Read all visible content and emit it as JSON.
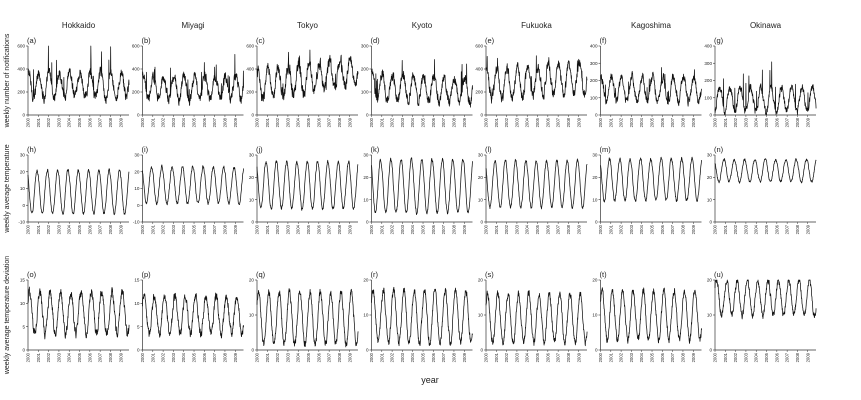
{
  "figure": {
    "xlabel": "year",
    "row_labels": [
      "weekly number of notifications",
      "weekly average temperature",
      "weekly average temperature deviation"
    ],
    "columns": [
      "Hokkaido",
      "Miyagi",
      "Tokyo",
      "Kyoto",
      "Fukuoka",
      "Kagoshima",
      "Okinawa"
    ],
    "year_ticks": [
      "2000",
      "2001",
      "2002",
      "2003",
      "2004",
      "2005",
      "2006",
      "2007",
      "2008",
      "2009"
    ],
    "colors": {
      "line": "#111111",
      "axis": "#333333",
      "text": "#222222"
    }
  },
  "chart_data": [
    {
      "type": "line",
      "panel": "(a)",
      "region": "Hokkaido",
      "measure": "notifications",
      "x_range": [
        2000,
        2009.8
      ],
      "ylim": [
        0,
        600
      ],
      "yticks": [
        0,
        200,
        400,
        600
      ],
      "ytick_labels": [
        "0",
        "200",
        "400",
        "600"
      ],
      "mean": 260,
      "amplitude": 110,
      "noise": 70,
      "phase": 0.05,
      "spike": 300,
      "trend": 0
    },
    {
      "type": "line",
      "panel": "(b)",
      "region": "Miyagi",
      "measure": "notifications",
      "x_range": [
        2000,
        2009.8
      ],
      "ylim": [
        0,
        600
      ],
      "yticks": [
        0,
        200,
        400,
        600
      ],
      "ytick_labels": [
        "0",
        "200",
        "400",
        "600"
      ],
      "mean": 240,
      "amplitude": 100,
      "noise": 65,
      "phase": 0.05,
      "spike": 220,
      "trend": 0
    },
    {
      "type": "line",
      "panel": "(c)",
      "region": "Tokyo",
      "measure": "notifications",
      "x_range": [
        2000,
        2009.8
      ],
      "ylim": [
        0,
        600
      ],
      "yticks": [
        0,
        200,
        400,
        600
      ],
      "ytick_labels": [
        "0",
        "200",
        "400",
        "600"
      ],
      "mean": 320,
      "amplitude": 130,
      "noise": 80,
      "phase": 0.05,
      "spike": 150,
      "trend": 120
    },
    {
      "type": "line",
      "panel": "(d)",
      "region": "Kyoto",
      "measure": "notifications",
      "x_range": [
        2000,
        2009.8
      ],
      "ylim": [
        0,
        300
      ],
      "yticks": [
        0,
        100,
        200,
        300
      ],
      "ytick_labels": [
        "0",
        "100",
        "200",
        "300"
      ],
      "mean": 115,
      "amplitude": 55,
      "noise": 35,
      "phase": 0.05,
      "spike": 110,
      "trend": -20
    },
    {
      "type": "line",
      "panel": "(e)",
      "region": "Fukuoka",
      "measure": "notifications",
      "x_range": [
        2000,
        2009.8
      ],
      "ylim": [
        0,
        600
      ],
      "yticks": [
        0,
        200,
        400,
        600
      ],
      "ytick_labels": [
        "0",
        "200",
        "400",
        "600"
      ],
      "mean": 300,
      "amplitude": 130,
      "noise": 70,
      "phase": 0.05,
      "spike": 120,
      "trend": 60
    },
    {
      "type": "line",
      "panel": "(f)",
      "region": "Kagoshima",
      "measure": "notifications",
      "x_range": [
        2000,
        2009.8
      ],
      "ylim": [
        0,
        400
      ],
      "yticks": [
        0,
        100,
        200,
        300,
        400
      ],
      "ytick_labels": [
        "0",
        "100",
        "200",
        "300",
        "400"
      ],
      "mean": 150,
      "amplitude": 70,
      "noise": 40,
      "phase": 0.05,
      "spike": 80,
      "trend": 0
    },
    {
      "type": "line",
      "panel": "(g)",
      "region": "Okinawa",
      "measure": "notifications",
      "x_range": [
        2000,
        2009.8
      ],
      "ylim": [
        0,
        400
      ],
      "yticks": [
        0,
        100,
        200,
        300,
        400
      ],
      "ytick_labels": [
        "0",
        "100",
        "200",
        "300",
        "400"
      ],
      "mean": 90,
      "amplitude": 70,
      "noise": 35,
      "phase": 0.45,
      "spike": 180,
      "trend": 0
    },
    {
      "type": "line",
      "panel": "(h)",
      "region": "Hokkaido",
      "measure": "temperature",
      "x_range": [
        2000,
        2009.8
      ],
      "ylim": [
        -10,
        30
      ],
      "yticks": [
        -10,
        0,
        10,
        20,
        30
      ],
      "ytick_labels": [
        "-10",
        "0",
        "10",
        "20",
        "30"
      ],
      "mean": 8,
      "amplitude": 13,
      "noise": 1.5,
      "phase": -0.12
    },
    {
      "type": "line",
      "panel": "(i)",
      "region": "Miyagi",
      "measure": "temperature",
      "x_range": [
        2000,
        2009.8
      ],
      "ylim": [
        -10,
        30
      ],
      "yticks": [
        -10,
        0,
        10,
        20,
        30
      ],
      "ytick_labels": [
        "-10",
        "0",
        "10",
        "20",
        "30"
      ],
      "mean": 12,
      "amplitude": 11,
      "noise": 1.5,
      "phase": -0.12
    },
    {
      "type": "line",
      "panel": "(j)",
      "region": "Tokyo",
      "measure": "temperature",
      "x_range": [
        2000,
        2009.8
      ],
      "ylim": [
        0,
        30
      ],
      "yticks": [
        0,
        10,
        20,
        30
      ],
      "ytick_labels": [
        "0",
        "10",
        "20",
        "30"
      ],
      "mean": 16.5,
      "amplitude": 10.5,
      "noise": 1.2,
      "phase": -0.12
    },
    {
      "type": "line",
      "panel": "(k)",
      "region": "Kyoto",
      "measure": "temperature",
      "x_range": [
        2000,
        2009.8
      ],
      "ylim": [
        0,
        30
      ],
      "yticks": [
        0,
        10,
        20,
        30
      ],
      "ytick_labels": [
        "0",
        "10",
        "20",
        "30"
      ],
      "mean": 16,
      "amplitude": 12,
      "noise": 1.2,
      "phase": -0.12
    },
    {
      "type": "line",
      "panel": "(l)",
      "region": "Fukuoka",
      "measure": "temperature",
      "x_range": [
        2000,
        2009.8
      ],
      "ylim": [
        0,
        30
      ],
      "yticks": [
        0,
        10,
        20,
        30
      ],
      "ytick_labels": [
        "0",
        "10",
        "20",
        "30"
      ],
      "mean": 17,
      "amplitude": 10.5,
      "noise": 1.2,
      "phase": -0.12
    },
    {
      "type": "line",
      "panel": "(m)",
      "region": "Kagoshima",
      "measure": "temperature",
      "x_range": [
        2000,
        2009.8
      ],
      "ylim": [
        0,
        30
      ],
      "yticks": [
        0,
        10,
        20,
        30
      ],
      "ytick_labels": [
        "0",
        "10",
        "20",
        "30"
      ],
      "mean": 19,
      "amplitude": 9.5,
      "noise": 1.2,
      "phase": -0.12
    },
    {
      "type": "line",
      "panel": "(n)",
      "region": "Okinawa",
      "measure": "temperature",
      "x_range": [
        2000,
        2009.8
      ],
      "ylim": [
        0,
        30
      ],
      "yticks": [
        0,
        10,
        20,
        30
      ],
      "ytick_labels": [
        "0",
        "10",
        "20",
        "30"
      ],
      "mean": 23,
      "amplitude": 5,
      "noise": 0.9,
      "phase": -0.12
    },
    {
      "type": "line",
      "panel": "(o)",
      "region": "Hokkaido",
      "measure": "temperature deviation",
      "x_range": [
        2000,
        2009.8
      ],
      "ylim": [
        0,
        15
      ],
      "yticks": [
        0,
        5,
        10,
        15
      ],
      "ytick_labels": [
        "0",
        "5",
        "10",
        "15"
      ],
      "mean": 8,
      "amplitude": 4.5,
      "noise": 1.5,
      "phase": 0.15
    },
    {
      "type": "line",
      "panel": "(p)",
      "region": "Miyagi",
      "measure": "temperature deviation",
      "x_range": [
        2000,
        2009.8
      ],
      "ylim": [
        0,
        15
      ],
      "yticks": [
        0,
        5,
        10,
        15
      ],
      "ytick_labels": [
        "0",
        "5",
        "10",
        "15"
      ],
      "mean": 7.5,
      "amplitude": 4,
      "noise": 1.4,
      "phase": 0.15
    },
    {
      "type": "line",
      "panel": "(q)",
      "region": "Tokyo",
      "measure": "temperature deviation",
      "x_range": [
        2000,
        2009.8
      ],
      "ylim": [
        0,
        20
      ],
      "yticks": [
        0,
        10,
        20
      ],
      "ytick_labels": [
        "0",
        "10",
        "20"
      ],
      "mean": 9,
      "amplitude": 7.5,
      "noise": 1.6,
      "phase": 0.15
    },
    {
      "type": "line",
      "panel": "(r)",
      "region": "Kyoto",
      "measure": "temperature deviation",
      "x_range": [
        2000,
        2009.8
      ],
      "ylim": [
        0,
        20
      ],
      "yticks": [
        0,
        10,
        20
      ],
      "ytick_labels": [
        "0",
        "10",
        "20"
      ],
      "mean": 9.5,
      "amplitude": 7.5,
      "noise": 1.6,
      "phase": 0.15
    },
    {
      "type": "line",
      "panel": "(s)",
      "region": "Fukuoka",
      "measure": "temperature deviation",
      "x_range": [
        2000,
        2009.8
      ],
      "ylim": [
        0,
        20
      ],
      "yticks": [
        0,
        10,
        20
      ],
      "ytick_labels": [
        "0",
        "10",
        "20"
      ],
      "mean": 9,
      "amplitude": 7,
      "noise": 1.6,
      "phase": 0.15
    },
    {
      "type": "line",
      "panel": "(t)",
      "region": "Kagoshima",
      "measure": "temperature deviation",
      "x_range": [
        2000,
        2009.8
      ],
      "ylim": [
        0,
        20
      ],
      "yticks": [
        0,
        10,
        20
      ],
      "ytick_labels": [
        "0",
        "10",
        "20"
      ],
      "mean": 10,
      "amplitude": 7,
      "noise": 1.6,
      "phase": 0.15
    },
    {
      "type": "line",
      "panel": "(u)",
      "region": "Okinawa",
      "measure": "temperature deviation",
      "x_range": [
        2000,
        2009.8
      ],
      "ylim": [
        0,
        20
      ],
      "yticks": [
        0,
        10,
        20
      ],
      "ytick_labels": [
        "0",
        "10",
        "20"
      ],
      "mean": 15,
      "amplitude": 5,
      "noise": 1.5,
      "phase": 0.15
    }
  ]
}
